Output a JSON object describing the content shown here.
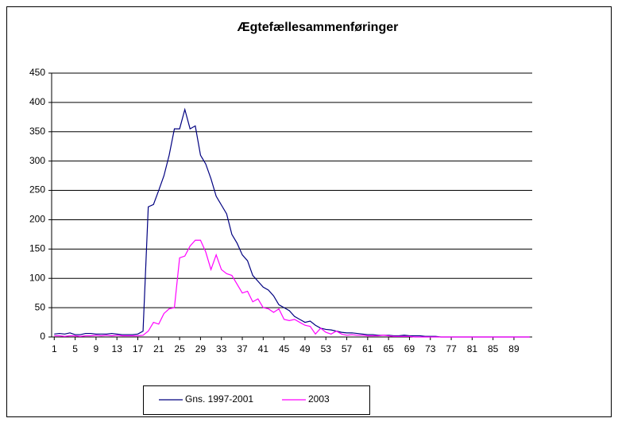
{
  "chart_data": {
    "type": "line",
    "title": "Ægtefællesammenføringer",
    "x": [
      1,
      2,
      3,
      4,
      5,
      6,
      7,
      8,
      9,
      10,
      11,
      12,
      13,
      14,
      15,
      16,
      17,
      18,
      19,
      20,
      21,
      22,
      23,
      24,
      25,
      26,
      27,
      28,
      29,
      30,
      31,
      32,
      33,
      34,
      35,
      36,
      37,
      38,
      39,
      40,
      41,
      42,
      43,
      44,
      45,
      46,
      47,
      48,
      49,
      50,
      51,
      52,
      53,
      54,
      55,
      56,
      57,
      58,
      59,
      60,
      61,
      62,
      63,
      64,
      65,
      66,
      67,
      68,
      69,
      70,
      71,
      72,
      73,
      74,
      75,
      76,
      77,
      78,
      79,
      80,
      81,
      82,
      83,
      84,
      85,
      86,
      87,
      88,
      89,
      90,
      91,
      92
    ],
    "xlim": [
      0.5,
      92.5
    ],
    "xticks": [
      1,
      5,
      9,
      13,
      17,
      21,
      25,
      29,
      33,
      37,
      41,
      45,
      49,
      53,
      57,
      61,
      65,
      69,
      73,
      77,
      81,
      85,
      89
    ],
    "ylim": [
      0,
      450
    ],
    "yticks": [
      0,
      50,
      100,
      150,
      200,
      250,
      300,
      350,
      400,
      450
    ],
    "grid": true,
    "legend": "bottom",
    "series": [
      {
        "name": "Gns. 1997-2001",
        "color": "#000080",
        "values": [
          5,
          6,
          5,
          7,
          4,
          4,
          6,
          6,
          5,
          5,
          5,
          6,
          5,
          4,
          4,
          4,
          5,
          10,
          222,
          226,
          250,
          275,
          310,
          355,
          355,
          388,
          355,
          360,
          310,
          295,
          270,
          240,
          225,
          210,
          175,
          160,
          140,
          130,
          105,
          95,
          85,
          80,
          70,
          55,
          50,
          45,
          35,
          30,
          25,
          27,
          20,
          15,
          13,
          12,
          10,
          8,
          7,
          7,
          6,
          5,
          4,
          4,
          3,
          3,
          3,
          2,
          2,
          3,
          2,
          2,
          2,
          1,
          1,
          1,
          0,
          0,
          0,
          0,
          0,
          0,
          0,
          0,
          0,
          0,
          0,
          0,
          0,
          0,
          0,
          0,
          0,
          0
        ]
      },
      {
        "name": "2003",
        "color": "#ff00ff",
        "values": [
          2,
          2,
          1,
          2,
          2,
          1,
          2,
          2,
          3,
          2,
          3,
          2,
          3,
          2,
          2,
          2,
          2,
          3,
          10,
          25,
          22,
          40,
          48,
          50,
          135,
          138,
          155,
          165,
          165,
          145,
          115,
          140,
          115,
          108,
          105,
          90,
          75,
          78,
          60,
          65,
          50,
          48,
          42,
          48,
          30,
          28,
          30,
          25,
          20,
          18,
          5,
          15,
          8,
          5,
          10,
          5,
          3,
          4,
          3,
          3,
          2,
          2,
          2,
          3,
          2,
          1,
          1,
          1,
          1,
          0,
          0,
          0,
          0,
          0,
          0,
          0,
          0,
          0,
          0,
          0,
          0,
          0,
          0,
          0,
          0,
          0,
          0,
          0,
          0,
          0,
          0,
          0
        ]
      }
    ]
  }
}
